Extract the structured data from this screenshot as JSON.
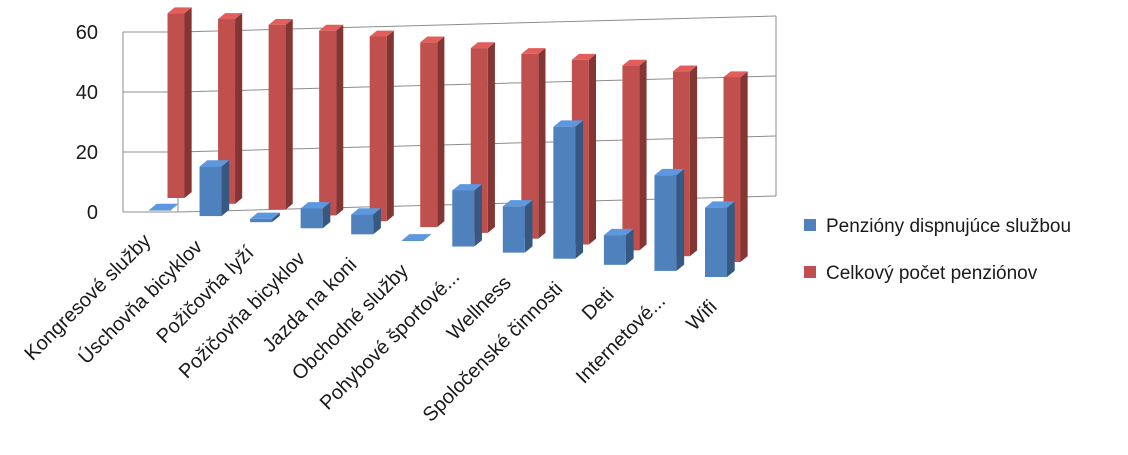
{
  "chart_data": {
    "type": "bar",
    "title": "",
    "xlabel": "",
    "ylabel": "",
    "ylim": [
      0,
      60
    ],
    "yticks": [
      0,
      20,
      40,
      60
    ],
    "grid": true,
    "legend_position": "right",
    "categories": [
      "Kongresové služby",
      "Úschovňa bicyklov",
      "Požičovňa lyží",
      "Požičovňa bicyklov",
      "Jazda na koni",
      "Obchodné služby",
      "Pohybové športové...",
      "Wellness",
      "Spoločenské činnosti",
      "Deti",
      "Internetové...",
      "Wifi"
    ],
    "series": [
      {
        "name": "Penzióny dispnujúce službou",
        "color": "#4f81bd",
        "values": [
          0,
          15,
          1,
          6,
          6,
          0,
          17,
          14,
          40,
          9,
          29,
          21
        ]
      },
      {
        "name": "Celkový počet penziónov",
        "color": "#c0504d",
        "values": [
          56,
          56,
          56,
          56,
          56,
          56,
          56,
          56,
          56,
          56,
          56,
          56
        ]
      }
    ]
  }
}
